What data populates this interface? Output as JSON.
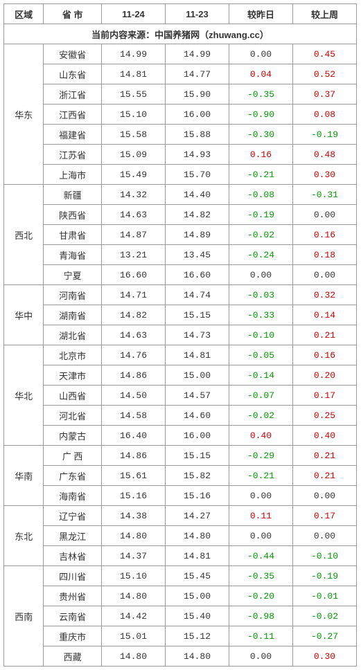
{
  "headers": {
    "region": "区域",
    "province": "省 市",
    "col1": "11-24",
    "col2": "11-23",
    "col3": "较昨日",
    "col4": "较上周"
  },
  "source_line": "当前内容来源：中国养猪网（zhuwang.cc）",
  "colors": {
    "pos": "#cc0000",
    "neg": "#009900",
    "zero": "#333333",
    "border": "#999999"
  },
  "regions": [
    {
      "name": "华东",
      "rows": [
        {
          "prov": "安徽省",
          "v1": "14.99",
          "v2": "14.99",
          "d1": "0.00",
          "d2": "0.45",
          "c1": "zero",
          "c2": "pos"
        },
        {
          "prov": "山东省",
          "v1": "14.81",
          "v2": "14.77",
          "d1": "0.04",
          "d2": "0.52",
          "c1": "pos",
          "c2": "pos"
        },
        {
          "prov": "浙江省",
          "v1": "15.55",
          "v2": "15.90",
          "d1": "-0.35",
          "d2": "0.37",
          "c1": "neg",
          "c2": "pos"
        },
        {
          "prov": "江西省",
          "v1": "15.10",
          "v2": "16.00",
          "d1": "-0.90",
          "d2": "0.08",
          "c1": "neg",
          "c2": "pos"
        },
        {
          "prov": "福建省",
          "v1": "15.58",
          "v2": "15.88",
          "d1": "-0.30",
          "d2": "-0.19",
          "c1": "neg",
          "c2": "neg"
        },
        {
          "prov": "江苏省",
          "v1": "15.09",
          "v2": "14.93",
          "d1": "0.16",
          "d2": "0.48",
          "c1": "pos",
          "c2": "pos"
        },
        {
          "prov": "上海市",
          "v1": "15.49",
          "v2": "15.70",
          "d1": "-0.21",
          "d2": "0.30",
          "c1": "neg",
          "c2": "pos"
        }
      ]
    },
    {
      "name": "西北",
      "rows": [
        {
          "prov": "新疆",
          "v1": "14.32",
          "v2": "14.40",
          "d1": "-0.08",
          "d2": "-0.31",
          "c1": "neg",
          "c2": "neg"
        },
        {
          "prov": "陕西省",
          "v1": "14.63",
          "v2": "14.82",
          "d1": "-0.19",
          "d2": "0.00",
          "c1": "neg",
          "c2": "zero"
        },
        {
          "prov": "甘肃省",
          "v1": "14.87",
          "v2": "14.89",
          "d1": "-0.02",
          "d2": "0.16",
          "c1": "neg",
          "c2": "pos"
        },
        {
          "prov": "青海省",
          "v1": "13.21",
          "v2": "13.45",
          "d1": "-0.24",
          "d2": "0.18",
          "c1": "neg",
          "c2": "pos"
        },
        {
          "prov": "宁夏",
          "v1": "16.60",
          "v2": "16.60",
          "d1": "0.00",
          "d2": "0.00",
          "c1": "zero",
          "c2": "zero"
        }
      ]
    },
    {
      "name": "华中",
      "rows": [
        {
          "prov": "河南省",
          "v1": "14.71",
          "v2": "14.74",
          "d1": "-0.03",
          "d2": "0.32",
          "c1": "neg",
          "c2": "pos"
        },
        {
          "prov": "湖南省",
          "v1": "14.82",
          "v2": "15.15",
          "d1": "-0.33",
          "d2": "0.14",
          "c1": "neg",
          "c2": "pos"
        },
        {
          "prov": "湖北省",
          "v1": "14.63",
          "v2": "14.73",
          "d1": "-0.10",
          "d2": "0.21",
          "c1": "neg",
          "c2": "pos"
        }
      ]
    },
    {
      "name": "华北",
      "rows": [
        {
          "prov": "北京市",
          "v1": "14.76",
          "v2": "14.81",
          "d1": "-0.05",
          "d2": "0.16",
          "c1": "neg",
          "c2": "pos"
        },
        {
          "prov": "天津市",
          "v1": "14.86",
          "v2": "15.00",
          "d1": "-0.14",
          "d2": "0.20",
          "c1": "neg",
          "c2": "pos"
        },
        {
          "prov": "山西省",
          "v1": "14.50",
          "v2": "14.57",
          "d1": "-0.07",
          "d2": "0.17",
          "c1": "neg",
          "c2": "pos"
        },
        {
          "prov": "河北省",
          "v1": "14.58",
          "v2": "14.60",
          "d1": "-0.02",
          "d2": "0.25",
          "c1": "neg",
          "c2": "pos"
        },
        {
          "prov": "内蒙古",
          "v1": "16.40",
          "v2": "16.00",
          "d1": "0.40",
          "d2": "0.40",
          "c1": "pos",
          "c2": "pos"
        }
      ]
    },
    {
      "name": "华南",
      "rows": [
        {
          "prov": "广 西",
          "v1": "14.86",
          "v2": "15.15",
          "d1": "-0.29",
          "d2": "0.21",
          "c1": "neg",
          "c2": "pos"
        },
        {
          "prov": "广东省",
          "v1": "15.61",
          "v2": "15.82",
          "d1": "-0.21",
          "d2": "0.21",
          "c1": "neg",
          "c2": "pos"
        },
        {
          "prov": "海南省",
          "v1": "15.16",
          "v2": "15.16",
          "d1": "0.00",
          "d2": "0.00",
          "c1": "zero",
          "c2": "zero"
        }
      ]
    },
    {
      "name": "东北",
      "rows": [
        {
          "prov": "辽宁省",
          "v1": "14.38",
          "v2": "14.27",
          "d1": "0.11",
          "d2": "0.17",
          "c1": "pos",
          "c2": "pos"
        },
        {
          "prov": "黑龙江",
          "v1": "14.80",
          "v2": "14.80",
          "d1": "0.00",
          "d2": "0.00",
          "c1": "zero",
          "c2": "zero"
        },
        {
          "prov": "吉林省",
          "v1": "14.37",
          "v2": "14.81",
          "d1": "-0.44",
          "d2": "-0.10",
          "c1": "neg",
          "c2": "neg"
        }
      ]
    },
    {
      "name": "西南",
      "rows": [
        {
          "prov": "四川省",
          "v1": "15.10",
          "v2": "15.45",
          "d1": "-0.35",
          "d2": "-0.19",
          "c1": "neg",
          "c2": "neg"
        },
        {
          "prov": "贵州省",
          "v1": "14.80",
          "v2": "15.00",
          "d1": "-0.20",
          "d2": "-0.01",
          "c1": "neg",
          "c2": "neg"
        },
        {
          "prov": "云南省",
          "v1": "14.42",
          "v2": "15.40",
          "d1": "-0.98",
          "d2": "-0.02",
          "c1": "neg",
          "c2": "neg"
        },
        {
          "prov": "重庆市",
          "v1": "15.01",
          "v2": "15.12",
          "d1": "-0.11",
          "d2": "-0.27",
          "c1": "neg",
          "c2": "neg"
        },
        {
          "prov": "西藏",
          "v1": "14.80",
          "v2": "14.80",
          "d1": "0.00",
          "d2": "0.30",
          "c1": "zero",
          "c2": "pos"
        }
      ]
    }
  ]
}
